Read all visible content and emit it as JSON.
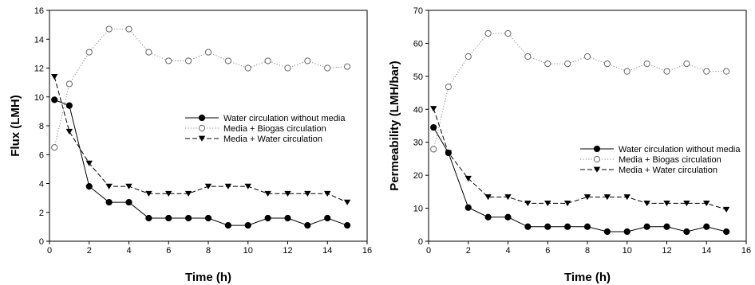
{
  "chart_data": [
    {
      "type": "line",
      "xlabel": "Time (h)",
      "ylabel": "Flux (LMH)",
      "xlim": [
        0,
        16
      ],
      "ylim": [
        0,
        16
      ],
      "xticks": [
        0,
        2,
        4,
        6,
        8,
        10,
        12,
        14,
        16
      ],
      "yticks": [
        0,
        2,
        4,
        6,
        8,
        10,
        12,
        14,
        16
      ],
      "legend_position": "center-right",
      "series": [
        {
          "name": "Water circulation without media",
          "marker": "filled-circle",
          "line": "solid",
          "color": "#000000",
          "x": [
            0.25,
            1,
            2,
            3,
            4,
            5,
            6,
            7,
            8,
            9,
            10,
            11,
            12,
            13,
            14,
            15
          ],
          "y": [
            9.8,
            9.4,
            3.8,
            2.7,
            2.7,
            1.6,
            1.6,
            1.6,
            1.6,
            1.1,
            1.1,
            1.6,
            1.6,
            1.1,
            1.6,
            1.1
          ]
        },
        {
          "name": "Media + Biogas circulation",
          "marker": "open-circle",
          "line": "dotted",
          "color": "#888888",
          "x": [
            0.25,
            1,
            2,
            3,
            4,
            5,
            6,
            7,
            8,
            9,
            10,
            11,
            12,
            13,
            14,
            15
          ],
          "y": [
            6.5,
            10.9,
            13.1,
            14.7,
            14.7,
            13.1,
            12.5,
            12.5,
            13.1,
            12.5,
            12.0,
            12.5,
            12.0,
            12.5,
            12.0,
            12.1
          ]
        },
        {
          "name": "Media + Water circulation",
          "marker": "filled-triangle-down",
          "line": "dashed",
          "color": "#000000",
          "x": [
            0.25,
            1,
            2,
            3,
            4,
            5,
            6,
            7,
            8,
            9,
            10,
            11,
            12,
            13,
            14,
            15
          ],
          "y": [
            11.4,
            7.6,
            5.4,
            3.8,
            3.8,
            3.3,
            3.3,
            3.3,
            3.8,
            3.8,
            3.8,
            3.3,
            3.3,
            3.3,
            3.3,
            2.7
          ]
        }
      ]
    },
    {
      "type": "line",
      "xlabel": "Time (h)",
      "ylabel": "Permeability (LMH/bar)",
      "xlim": [
        0,
        16
      ],
      "ylim": [
        0,
        70
      ],
      "xticks": [
        0,
        2,
        4,
        6,
        8,
        10,
        12,
        14,
        16
      ],
      "yticks": [
        0,
        10,
        20,
        30,
        40,
        50,
        60,
        70
      ],
      "legend_position": "center-right",
      "series": [
        {
          "name": "Water circulation without media",
          "marker": "filled-circle",
          "line": "solid",
          "color": "#000000",
          "x": [
            0.25,
            1,
            2,
            3,
            4,
            5,
            6,
            7,
            8,
            9,
            10,
            11,
            12,
            13,
            14,
            15
          ],
          "y": [
            34.5,
            26.8,
            10.2,
            7.3,
            7.3,
            4.4,
            4.4,
            4.4,
            4.4,
            2.9,
            2.9,
            4.4,
            4.4,
            2.9,
            4.4,
            2.9
          ]
        },
        {
          "name": "Media + Biogas circulation",
          "marker": "open-circle",
          "line": "dotted",
          "color": "#888888",
          "x": [
            0.25,
            1,
            2,
            3,
            4,
            5,
            6,
            7,
            8,
            9,
            10,
            11,
            12,
            13,
            14,
            15
          ],
          "y": [
            27.9,
            46.8,
            56.0,
            63.0,
            63.0,
            56.0,
            53.8,
            53.8,
            56.0,
            53.8,
            51.5,
            53.8,
            51.5,
            53.8,
            51.5,
            51.5
          ]
        },
        {
          "name": "Media + Water circulation",
          "marker": "filled-triangle-down",
          "line": "dashed",
          "color": "#000000",
          "x": [
            0.25,
            1,
            2,
            3,
            4,
            5,
            6,
            7,
            8,
            9,
            10,
            11,
            12,
            13,
            14,
            15
          ],
          "y": [
            40.2,
            26.8,
            19.0,
            13.4,
            13.4,
            11.5,
            11.5,
            11.5,
            13.4,
            13.4,
            13.4,
            11.5,
            11.5,
            11.5,
            11.5,
            9.6
          ]
        }
      ]
    }
  ]
}
